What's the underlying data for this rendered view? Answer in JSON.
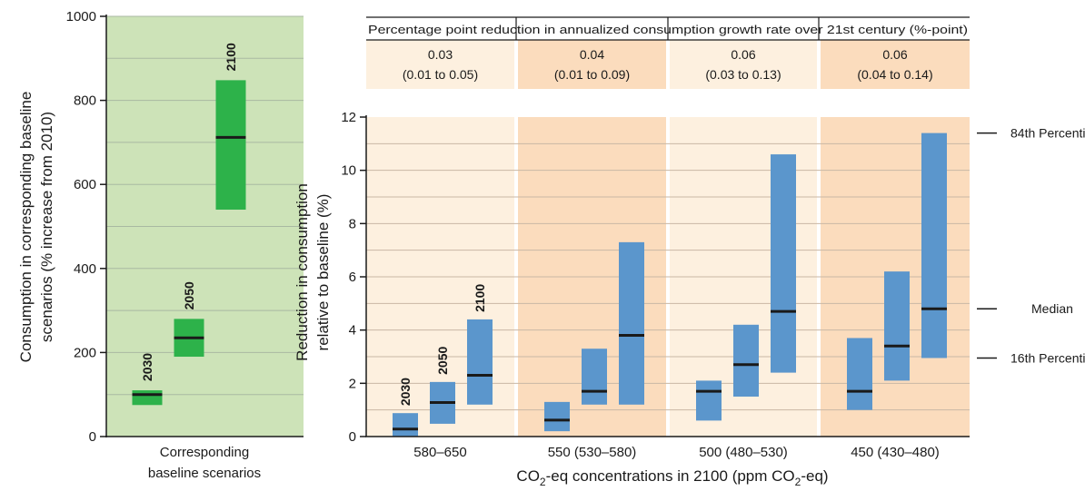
{
  "chart_data": [
    {
      "type": "box",
      "ylabel_line1": "Consumption in corresponding baseline",
      "ylabel_line2": "scenarios (% increase from 2010)",
      "xlabel_line1": "Corresponding",
      "xlabel_line2": "baseline scenarios",
      "ylim": [
        0,
        1000
      ],
      "yticks": [
        "0",
        "200",
        "400",
        "600",
        "800",
        "1000"
      ],
      "grid": true,
      "color": "#2db24a",
      "background": "#cde3b8",
      "boxes": [
        {
          "year": "2030",
          "p16": 75,
          "median": 100,
          "p84": 110
        },
        {
          "year": "2050",
          "p16": 190,
          "median": 235,
          "p84": 280
        },
        {
          "year": "2100",
          "p16": 540,
          "median": 712,
          "p84": 848
        }
      ]
    },
    {
      "type": "box",
      "header_title": "Percentage point reduction in annualized consumption growth rate over 21st century (%-point)",
      "ylabel_line1": "Reduction in consumption",
      "ylabel_line2": "relative to baseline (%)",
      "xlabel_pre": "CO",
      "xlabel_sub": "2",
      "xlabel_mid": "-eq concentrations in 2100 (ppm CO",
      "xlabel_sub2": "2",
      "xlabel_post": "-eq)",
      "ylim": [
        0,
        12
      ],
      "yticks": [
        "0",
        "2",
        "4",
        "6",
        "8",
        "10",
        "12"
      ],
      "grid": true,
      "color": "#5b96cc",
      "year_labels": [
        "2030",
        "2050",
        "2100"
      ],
      "groups": [
        {
          "label": "580–650",
          "bg": "#fdf0df",
          "growth_median": "0.03",
          "growth_range": "(0.01 to 0.05)",
          "boxes": [
            {
              "year": "2030",
              "p16": 0.0,
              "median": 0.28,
              "p84": 0.88
            },
            {
              "year": "2050",
              "p16": 0.48,
              "median": 1.28,
              "p84": 2.05
            },
            {
              "year": "2100",
              "p16": 1.2,
              "median": 2.3,
              "p84": 4.4
            }
          ]
        },
        {
          "label": "550 (530–580)",
          "bg": "#fbdcbd",
          "growth_median": "0.04",
          "growth_range": "(0.01 to 0.09)",
          "boxes": [
            {
              "year": "2030",
              "p16": 0.2,
              "median": 0.62,
              "p84": 1.3
            },
            {
              "year": "2050",
              "p16": 1.2,
              "median": 1.7,
              "p84": 3.3
            },
            {
              "year": "2100",
              "p16": 1.2,
              "median": 3.8,
              "p84": 7.3
            }
          ]
        },
        {
          "label": "500 (480–530)",
          "bg": "#fdf0df",
          "growth_median": "0.06",
          "growth_range": "(0.03 to 0.13)",
          "boxes": [
            {
              "year": "2030",
              "p16": 0.6,
              "median": 1.7,
              "p84": 2.1
            },
            {
              "year": "2050",
              "p16": 1.5,
              "median": 2.7,
              "p84": 4.2
            },
            {
              "year": "2100",
              "p16": 2.4,
              "median": 4.7,
              "p84": 10.6
            }
          ]
        },
        {
          "label": "450 (430–480)",
          "bg": "#fbdcbd",
          "growth_median": "0.06",
          "growth_range": "(0.04 to 0.14)",
          "boxes": [
            {
              "year": "2030",
              "p16": 1.0,
              "median": 1.7,
              "p84": 3.7
            },
            {
              "year": "2050",
              "p16": 2.1,
              "median": 3.4,
              "p84": 6.2
            },
            {
              "year": "2100",
              "p16": 2.95,
              "median": 4.8,
              "p84": 11.4
            }
          ]
        }
      ],
      "annotations": {
        "p84": "84th Percentile",
        "median": "Median",
        "p16": "16th Percentile"
      }
    }
  ]
}
